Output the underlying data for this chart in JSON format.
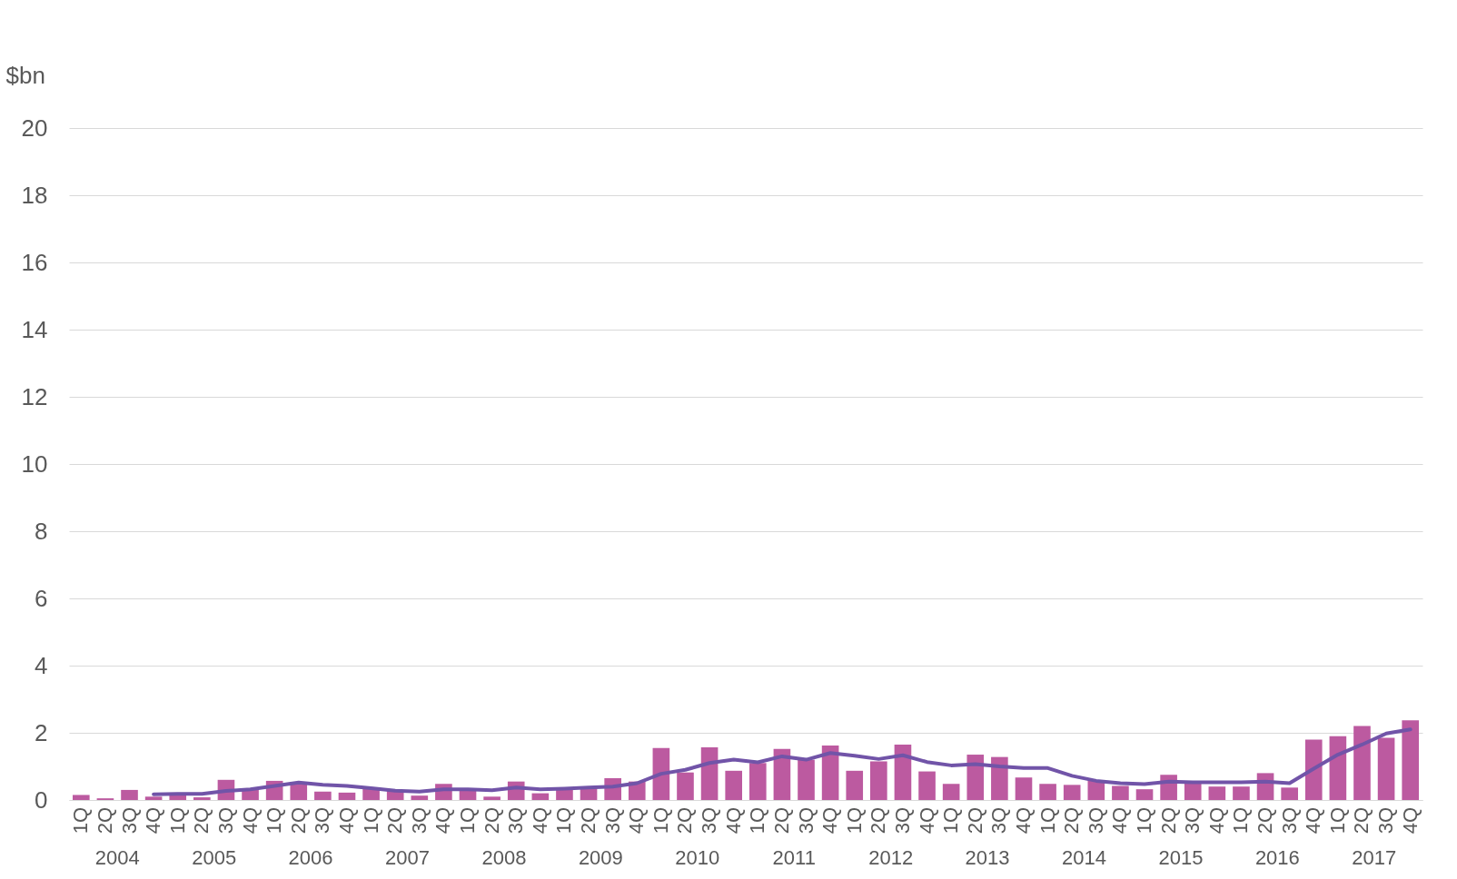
{
  "chart_data": {
    "type": "bar",
    "ylabel": "$bn",
    "categories": [
      "1Q",
      "2Q",
      "3Q",
      "4Q",
      "1Q",
      "2Q",
      "3Q",
      "4Q",
      "1Q",
      "2Q",
      "3Q",
      "4Q",
      "1Q",
      "2Q",
      "3Q",
      "4Q",
      "1Q",
      "2Q",
      "3Q",
      "4Q",
      "1Q",
      "2Q",
      "3Q",
      "4Q",
      "1Q",
      "2Q",
      "3Q",
      "4Q",
      "1Q",
      "2Q",
      "3Q",
      "4Q",
      "1Q",
      "2Q",
      "3Q",
      "4Q",
      "1Q",
      "2Q",
      "3Q",
      "4Q",
      "1Q",
      "2Q",
      "3Q",
      "4Q",
      "1Q",
      "2Q",
      "3Q",
      "4Q",
      "1Q",
      "2Q",
      "3Q",
      "4Q",
      "1Q",
      "2Q",
      "3Q",
      "4Q"
    ],
    "annotations": [
      "2004",
      "2005",
      "2006",
      "2007",
      "2008",
      "2009",
      "2010",
      "2011",
      "2012",
      "2013",
      "2014",
      "2015",
      "2016",
      "2017"
    ],
    "series": [
      {
        "color": "#bc5aa0",
        "values": [
          0.15,
          0.05,
          0.3,
          0.1,
          0.15,
          0.08,
          0.6,
          0.3,
          0.57,
          0.52,
          0.25,
          0.22,
          0.33,
          0.27,
          0.13,
          0.48,
          0.33,
          0.1,
          0.55,
          0.2,
          0.37,
          0.37,
          0.65,
          0.55,
          1.55,
          0.82,
          1.57,
          0.87,
          1.1,
          1.52,
          1.2,
          1.62,
          0.87,
          1.15,
          1.65,
          0.85,
          0.48,
          1.35,
          1.28,
          0.67,
          0.48,
          0.45,
          0.58,
          0.42,
          0.32,
          0.75,
          0.55,
          0.4,
          0.4,
          0.8,
          0.37,
          1.8,
          1.9,
          2.2,
          1.85,
          2.37
        ]
      },
      {
        "type": "line",
        "color": "#7154a8",
        "values": [
          null,
          null,
          null,
          0.17,
          0.18,
          0.18,
          0.27,
          0.32,
          0.42,
          0.52,
          0.45,
          0.42,
          0.35,
          0.28,
          0.25,
          0.32,
          0.32,
          0.29,
          0.37,
          0.32,
          0.34,
          0.37,
          0.4,
          0.5,
          0.78,
          0.9,
          1.1,
          1.2,
          1.12,
          1.3,
          1.2,
          1.4,
          1.32,
          1.22,
          1.33,
          1.13,
          1.03,
          1.07,
          1.0,
          0.95,
          0.95,
          0.72,
          0.57,
          0.5,
          0.47,
          0.55,
          0.53,
          0.53,
          0.53,
          0.55,
          0.5,
          0.93,
          1.35,
          1.65,
          1.98,
          2.1
        ]
      }
    ],
    "ylim": [
      0,
      20
    ],
    "yticks": [
      0,
      2,
      4,
      6,
      8,
      10,
      12,
      14,
      16,
      18,
      20
    ],
    "grid": "y"
  }
}
